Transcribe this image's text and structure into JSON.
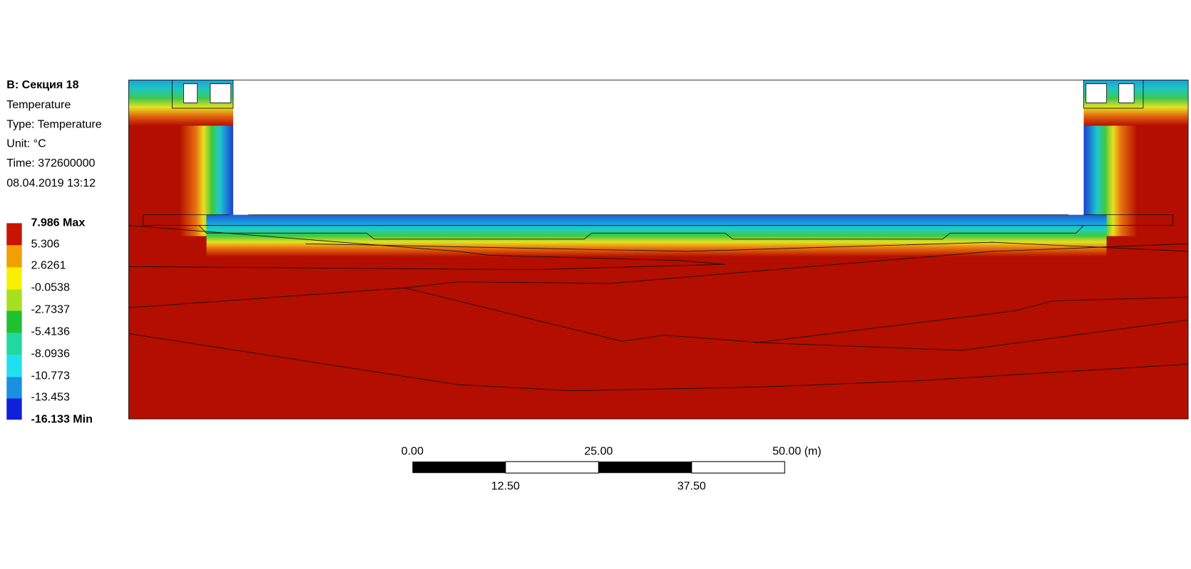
{
  "header": {
    "title": "B: Секция 18",
    "lines": [
      "Temperature",
      "Type: Temperature",
      "Unit: °C",
      "Time: 372600000",
      "08.04.2019 13:12"
    ]
  },
  "legend": {
    "labels": [
      "7.986 Max",
      "5.306",
      "2.6261",
      "-0.0538",
      "-2.7337",
      "-5.4136",
      "-8.0936",
      "-10.773",
      "-13.453",
      "-16.133 Min"
    ]
  },
  "scale_bar": {
    "top_labels": [
      "0.00",
      "25.00",
      "50.00 (m)"
    ],
    "bottom_labels": [
      "12.50",
      "37.50"
    ]
  }
}
